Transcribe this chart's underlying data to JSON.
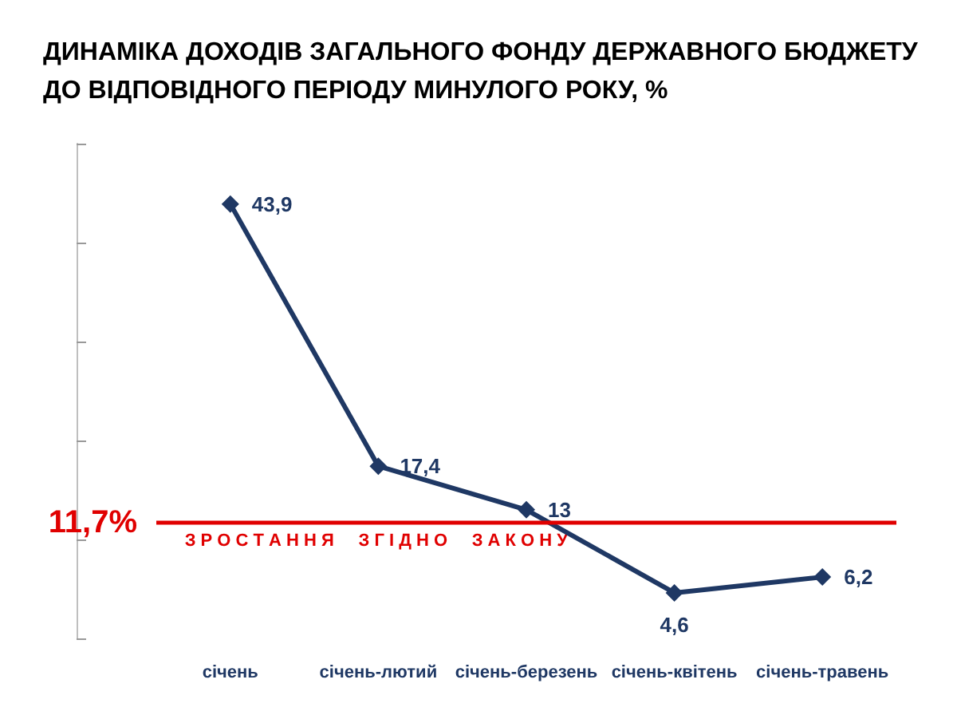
{
  "chart_data": {
    "type": "line",
    "title": "ДИНАМІКА ДОХОДІВ ЗАГАЛЬНОГО ФОНДУ ДЕРЖАВНОГО БЮДЖЕТУ\nДО ВІДПОВІДНОГО ПЕРІОДУ МИНУЛОГО РОКУ, %",
    "categories": [
      "січень",
      "січень-лютий",
      "січень-березень",
      "січень-квітень",
      "січень-травень"
    ],
    "series": [
      {
        "color": "#1f3864",
        "values": [
          43.9,
          17.4,
          13,
          4.6,
          6.2
        ],
        "value_labels": [
          "43,9",
          "17,4",
          "13",
          "4,6",
          "6,2"
        ]
      }
    ],
    "tick_labels": "x",
    "grid": false,
    "marker": "diamond",
    "line_style": "solid",
    "ref_lines": [
      {
        "axis": "y",
        "value": 11.7,
        "label": "11,7%",
        "color": "#e00000",
        "line_style": "solid"
      }
    ],
    "annotations": [
      "З Р О С Т А Н Н Я     З Г І Д Н О     З А К О Н У"
    ]
  }
}
